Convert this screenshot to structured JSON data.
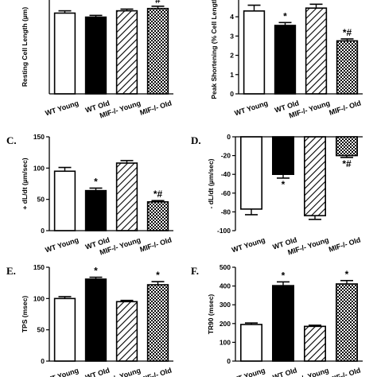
{
  "chart_data": [
    {
      "panel": "",
      "type": "bar",
      "ylabel": "Resting Cell Length (µm)",
      "ylim": [
        0,
        175
      ],
      "yticks": [],
      "categories": [
        "WT Young",
        "WT Old",
        "MIF-/- Young",
        "MIF-/- Old"
      ],
      "values": [
        141,
        134,
        145,
        149
      ],
      "errors": [
        4,
        3,
        3,
        4
      ],
      "significance": [
        "",
        "",
        "",
        "#"
      ],
      "patterns": [
        "white",
        "black",
        "hatch",
        "checker"
      ]
    },
    {
      "panel": "",
      "type": "bar",
      "ylabel": "Peak Shortening (% Cell Length)",
      "ylim": [
        0,
        5.2
      ],
      "yticks": [
        "4",
        "3",
        "2",
        "1",
        "0"
      ],
      "categories": [
        "WT Young",
        "WT Old",
        "MIF-/- Young",
        "MIF-/- Old"
      ],
      "values": [
        4.3,
        3.55,
        4.45,
        2.75
      ],
      "errors": [
        0.3,
        0.15,
        0.2,
        0.1
      ],
      "significance": [
        "",
        "*",
        "",
        "*#"
      ],
      "patterns": [
        "white",
        "black",
        "hatch",
        "checker"
      ]
    },
    {
      "panel": "C.",
      "type": "bar",
      "ylabel": "+ dL/dt (µm/sec)",
      "ylim": [
        0,
        150
      ],
      "yticks": [
        "150",
        "100",
        "50",
        "0"
      ],
      "categories": [
        "WT Young",
        "WT Old",
        "MIF-/- Young",
        "MIF-/- Old"
      ],
      "values": [
        95,
        64,
        108,
        46
      ],
      "errors": [
        6,
        4,
        4,
        2
      ],
      "significance": [
        "",
        "*",
        "",
        "*#"
      ],
      "patterns": [
        "white",
        "black",
        "hatch",
        "checker"
      ]
    },
    {
      "panel": "D.",
      "type": "bar",
      "ylabel": "- dL/dt (µm/sec)",
      "ylim": [
        -100,
        0
      ],
      "yticks": [
        "0",
        "-20",
        "-40",
        "-60",
        "-80",
        "-100"
      ],
      "categories": [
        "WT Young",
        "WT Old",
        "MIF-/- Young",
        "MIF-/- Old"
      ],
      "values": [
        -77,
        -40,
        -84,
        -20
      ],
      "errors": [
        6,
        4,
        4,
        2
      ],
      "significance": [
        "",
        "*",
        "",
        "*#"
      ],
      "patterns": [
        "white",
        "black",
        "hatch",
        "checker"
      ]
    },
    {
      "panel": "E.",
      "type": "bar",
      "ylabel": "TPS (msec)",
      "ylim": [
        0,
        150
      ],
      "yticks": [
        "150",
        "100",
        "50",
        "0"
      ],
      "categories": [
        "WT Young",
        "WT Old",
        "MIF-/- Young",
        "MIF-/- Old"
      ],
      "values": [
        100,
        131,
        95,
        122
      ],
      "errors": [
        3,
        3,
        2,
        5
      ],
      "significance": [
        "",
        "*",
        "",
        "*"
      ],
      "patterns": [
        "white",
        "black",
        "hatch",
        "checker"
      ]
    },
    {
      "panel": "F.",
      "type": "bar",
      "ylabel": "TR90 (msec)",
      "ylim": [
        0,
        500
      ],
      "yticks": [
        "500",
        "400",
        "300",
        "200",
        "100",
        "0"
      ],
      "categories": [
        "WT Young",
        "WT Old",
        "MIF-/- Young",
        "MIF-/- Old"
      ],
      "values": [
        195,
        402,
        185,
        411
      ],
      "errors": [
        8,
        20,
        6,
        18
      ],
      "significance": [
        "",
        "*",
        "",
        "*"
      ],
      "patterns": [
        "white",
        "black",
        "hatch",
        "checker"
      ]
    }
  ]
}
